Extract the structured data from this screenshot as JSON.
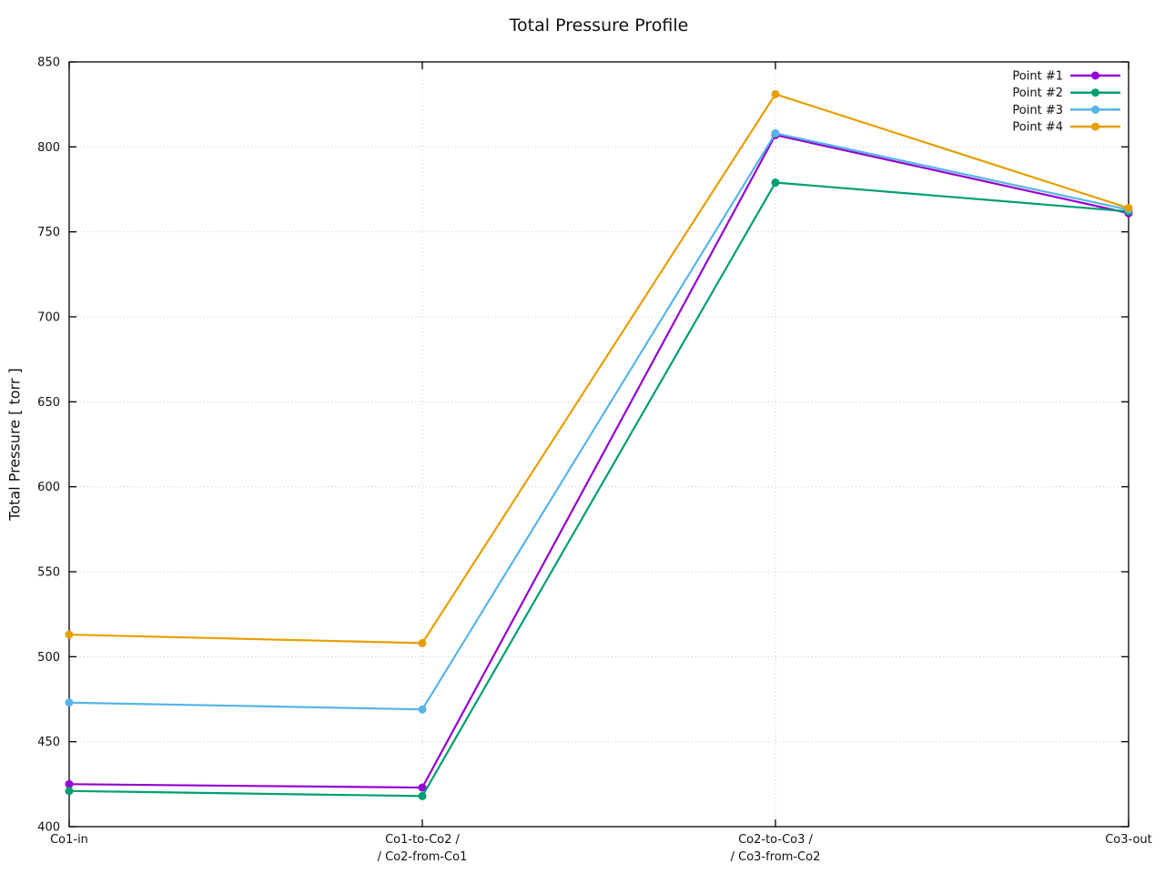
{
  "window": {
    "background": "#ffffff",
    "foreground": "#111111",
    "grid_color": "#c8c8c8",
    "axis_color": "#000000"
  },
  "chart_data": {
    "type": "line",
    "title": "Total Pressure Profile",
    "xlabel": "",
    "ylabel": "Total Pressure [ torr ]",
    "ylim": [
      400,
      850
    ],
    "ytick_labels": [
      "400",
      "450",
      "500",
      "550",
      "600",
      "650",
      "700",
      "750",
      "800",
      "850"
    ],
    "grid": true,
    "legend_position": "top-right",
    "categories": [
      "Co1-in",
      "Co1-to-Co2 /\n/ Co2-from-Co1",
      "Co2-to-Co3 /\n/ Co3-from-Co2",
      "Co3-out"
    ],
    "series": [
      {
        "name": "Point #1",
        "color": "#9400d3",
        "values": [
          425,
          423,
          807,
          761
        ]
      },
      {
        "name": "Point #2",
        "color": "#009e73",
        "values": [
          421,
          418,
          779,
          762
        ]
      },
      {
        "name": "Point #3",
        "color": "#56b4e9",
        "values": [
          473,
          469,
          808,
          763
        ]
      },
      {
        "name": "Point #4",
        "color": "#e69f00",
        "values": [
          513,
          508,
          831,
          764
        ]
      }
    ]
  }
}
